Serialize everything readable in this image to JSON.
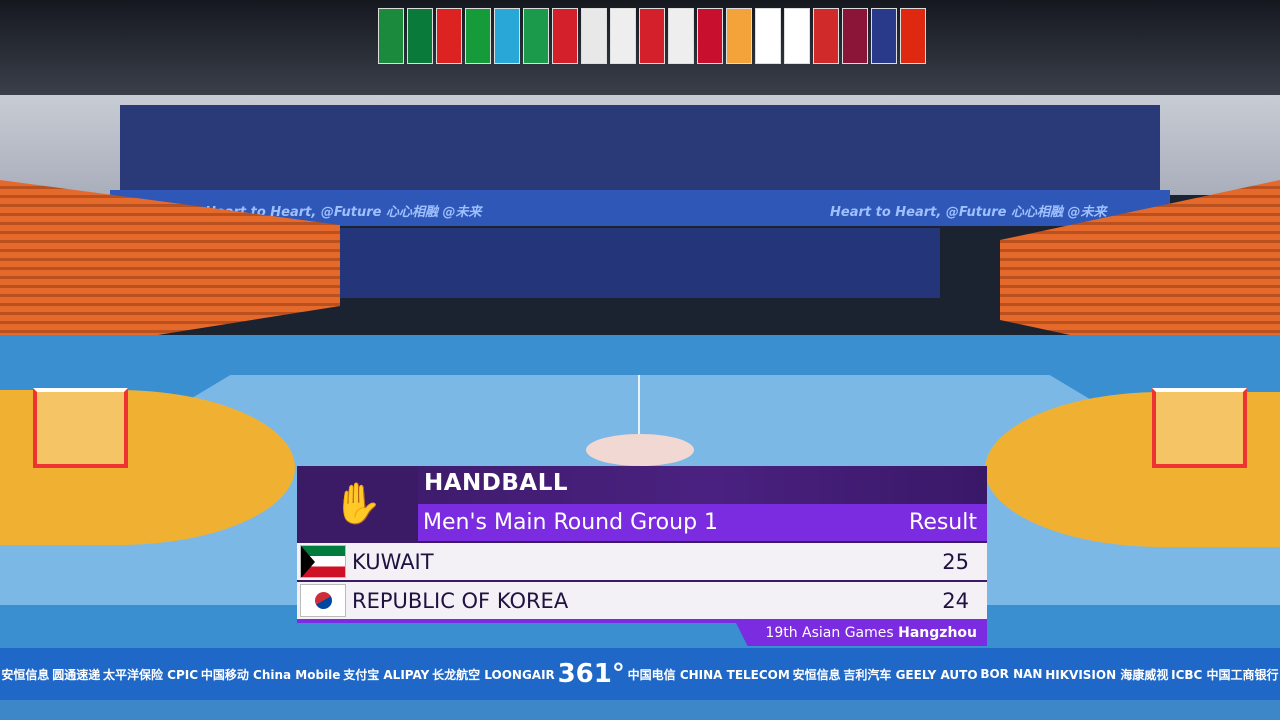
{
  "scene": {
    "banner_text": "Heart to Heart, @Future 心心相融 @未来",
    "sponsors": [
      "安恒信息",
      "圆通速递",
      "太平洋保险 CPIC",
      "中国移动 China Mobile",
      "支付宝 ALIPAY",
      "长龙航空 LOONGAIR",
      "361°",
      "中国电信 CHINA TELECOM",
      "安恒信息",
      "吉利汽车 GEELY AUTO",
      "BOR NAN",
      "HIKVISION 海康威视",
      "ICBC 中国工商银行"
    ]
  },
  "overlay": {
    "sport": "HANDBALL",
    "event": "Men's Main Round Group 1",
    "status": "Result",
    "teams": [
      {
        "name": "KUWAIT",
        "score": "25",
        "flag": "kuwait-flag"
      },
      {
        "name": "REPUBLIC OF KOREA",
        "score": "24",
        "flag": "korea-flag"
      }
    ],
    "footer_prefix": "19th Asian Games",
    "footer_city": "Hangzhou",
    "colors": {
      "dark_purple": "#3b1a66",
      "accent_purple": "#7b2be0",
      "row_bg": "#f3f0f6"
    }
  }
}
